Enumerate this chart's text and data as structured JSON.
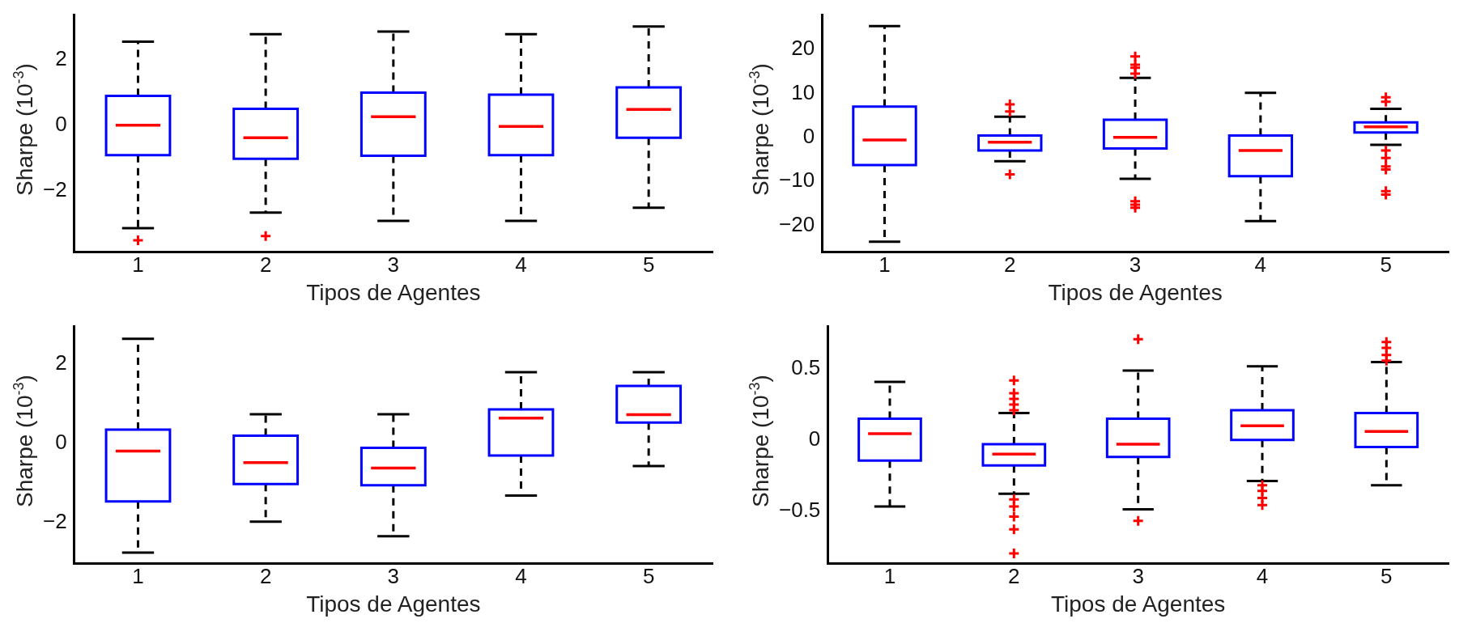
{
  "chart_data": [
    {
      "type": "box",
      "xlabel": "Tipos de Agentes",
      "ylabel": "Sharpe (10$^{-3}$)",
      "categories": [
        "1",
        "2",
        "3",
        "4",
        "5"
      ],
      "color": "#0000ff",
      "ylim": [
        -3.85,
        3.35
      ],
      "yticks": [
        -2,
        0,
        2
      ],
      "grid": false,
      "legend": false,
      "boxes": [
        {
          "low": -3.13,
          "q1": -0.91,
          "median": 0,
          "q3": 0.89,
          "high": 2.54,
          "outliers": [
            -3.5
          ]
        },
        {
          "low": -2.66,
          "q1": -1.02,
          "median": -0.38,
          "q3": 0.5,
          "high": 2.77,
          "outliers": [
            -3.37
          ]
        },
        {
          "low": -2.91,
          "q1": -0.93,
          "median": 0.26,
          "q3": 0.99,
          "high": 2.85
        },
        {
          "low": -2.91,
          "q1": -0.91,
          "median": -0.04,
          "q3": 0.93,
          "high": 2.77
        },
        {
          "low": -2.51,
          "q1": -0.38,
          "median": 0.48,
          "q3": 1.15,
          "high": 3.0
        }
      ]
    },
    {
      "type": "box",
      "xlabel": "Tipos de Agentes",
      "ylabel": "Sharpe (10$^{-3}$)",
      "categories": [
        "1",
        "2",
        "3",
        "4",
        "5"
      ],
      "color": "#0000ff",
      "ylim": [
        -26,
        27.8
      ],
      "yticks": [
        -20,
        -10,
        0,
        10,
        20
      ],
      "grid": false,
      "legend": false,
      "boxes": [
        {
          "low": -23.7,
          "q1": -6.3,
          "median": -0.6,
          "q3": 7.0,
          "high": 25.3
        },
        {
          "low": -5.4,
          "q1": -3.0,
          "median": -1.1,
          "q3": 0.4,
          "high": 4.7,
          "outliers": [
            7.5,
            5.9,
            -8.4
          ]
        },
        {
          "low": -9.4,
          "q1": -2.5,
          "median": 0,
          "q3": 4.0,
          "high": 13.5,
          "outliers": [
            18.4,
            16.5,
            15.8,
            14.5,
            -14.5,
            -15.3,
            -16.0
          ]
        },
        {
          "low": -19.0,
          "q1": -8.8,
          "median": -3.0,
          "q3": 0.4,
          "high": 10.1
        },
        {
          "low": -1.7,
          "q1": 1.1,
          "median": 2.4,
          "q3": 3.4,
          "high": 6.5,
          "outliers": [
            9.1,
            8.1,
            -3.0,
            -4.7,
            -6.6,
            -7.3,
            -12.2,
            -13.0
          ]
        }
      ]
    },
    {
      "type": "box",
      "xlabel": "Tipos de Agentes",
      "ylabel": "Sharpe (10$^{-3}$)",
      "categories": [
        "1",
        "2",
        "3",
        "4",
        "5"
      ],
      "color": "#0000ff",
      "ylim": [
        -3.03,
        2.94
      ],
      "yticks": [
        -2,
        0,
        2
      ],
      "grid": false,
      "legend": false,
      "boxes": [
        {
          "low": -2.76,
          "q1": -1.47,
          "median": -0.2,
          "q3": 0.34,
          "high": 2.63
        },
        {
          "low": -1.98,
          "q1": -1.03,
          "median": -0.49,
          "q3": 0.19,
          "high": 0.73
        },
        {
          "low": -2.35,
          "q1": -1.06,
          "median": -0.63,
          "q3": -0.12,
          "high": 0.73
        },
        {
          "low": -1.32,
          "q1": -0.31,
          "median": 0.63,
          "q3": 0.85,
          "high": 1.79
        },
        {
          "low": -0.58,
          "q1": 0.52,
          "median": 0.72,
          "q3": 1.44,
          "high": 1.79
        }
      ]
    },
    {
      "type": "box",
      "xlabel": "Tipos de Agentes",
      "ylabel": "Sharpe (10$^{-3}$)",
      "categories": [
        "1",
        "2",
        "3",
        "4",
        "5"
      ],
      "color": "#0000ff",
      "ylim": [
        -0.87,
        0.8
      ],
      "yticks": [
        -0.5,
        0,
        0.5
      ],
      "grid": false,
      "legend": false,
      "boxes": [
        {
          "low": -0.47,
          "q1": -0.145,
          "median": 0.045,
          "q3": 0.15,
          "high": 0.41
        },
        {
          "low": -0.38,
          "q1": -0.18,
          "median": -0.1,
          "q3": -0.03,
          "high": 0.19,
          "outliers": [
            0.42,
            0.33,
            0.29,
            0.25,
            0.21,
            -0.42,
            -0.47,
            -0.54,
            -0.63,
            -0.8
          ]
        },
        {
          "low": -0.49,
          "q1": -0.12,
          "median": -0.03,
          "q3": 0.15,
          "high": 0.49,
          "outliers": [
            0.71,
            -0.57
          ]
        },
        {
          "low": -0.29,
          "q1": 0,
          "median": 0.1,
          "q3": 0.21,
          "high": 0.52,
          "outliers": [
            -0.32,
            -0.36,
            -0.41,
            -0.46
          ]
        },
        {
          "low": -0.32,
          "q1": -0.05,
          "median": 0.06,
          "q3": 0.19,
          "high": 0.55,
          "outliers": [
            0.69,
            0.65,
            0.6,
            0.56
          ]
        }
      ]
    }
  ]
}
